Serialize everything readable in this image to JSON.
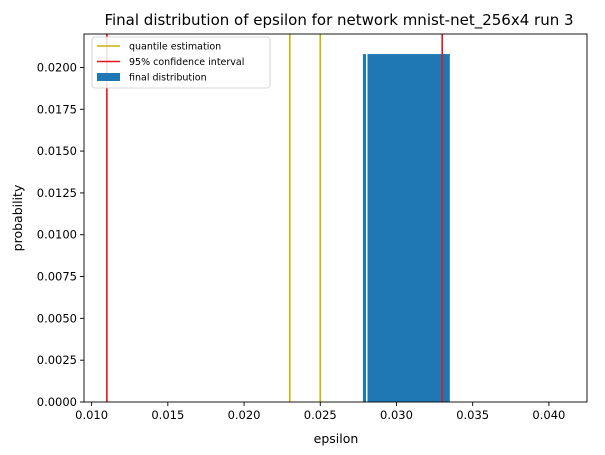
{
  "chart_data": {
    "type": "bar",
    "title": "Final distribution of epsilon for network mnist-net_256x4 run 3",
    "xlabel": "epsilon",
    "ylabel": "probability",
    "xlim": [
      0.0095,
      0.0425
    ],
    "ylim": [
      0.0,
      0.022
    ],
    "grid": false,
    "legend_position": "top-left",
    "xticks": [
      "0.010",
      "0.015",
      "0.020",
      "0.025",
      "0.030",
      "0.035",
      "0.040"
    ],
    "xtick_values": [
      0.01,
      0.015,
      0.02,
      0.025,
      0.03,
      0.035,
      0.04
    ],
    "yticks": [
      "0.0000",
      "0.0025",
      "0.0050",
      "0.0075",
      "0.0100",
      "0.0125",
      "0.0150",
      "0.0175",
      "0.0200"
    ],
    "ytick_values": [
      0.0,
      0.0025,
      0.005,
      0.0075,
      0.01,
      0.0125,
      0.015,
      0.0175,
      0.02
    ],
    "bars": [
      {
        "x_start": 0.0278,
        "x_end": 0.028,
        "value": 0.0208
      },
      {
        "x_start": 0.0281,
        "x_end": 0.0335,
        "value": 0.0208
      }
    ],
    "vlines": [
      {
        "series": "quantile estimation",
        "x": 0.023,
        "color": "#c8b400"
      },
      {
        "series": "quantile estimation",
        "x": 0.025,
        "color": "#c8b400"
      },
      {
        "series": "95% confidence interval",
        "x": 0.011,
        "color": "#e8141e"
      },
      {
        "series": "95% confidence interval",
        "x": 0.033,
        "color": "#e8141e"
      }
    ],
    "legend": [
      {
        "label": "quantile estimation",
        "kind": "line",
        "color": "#c8b400"
      },
      {
        "label": "95% confidence interval",
        "kind": "line",
        "color": "#e8141e"
      },
      {
        "label": "final distribution",
        "kind": "patch",
        "color": "#1f77b4"
      }
    ]
  }
}
